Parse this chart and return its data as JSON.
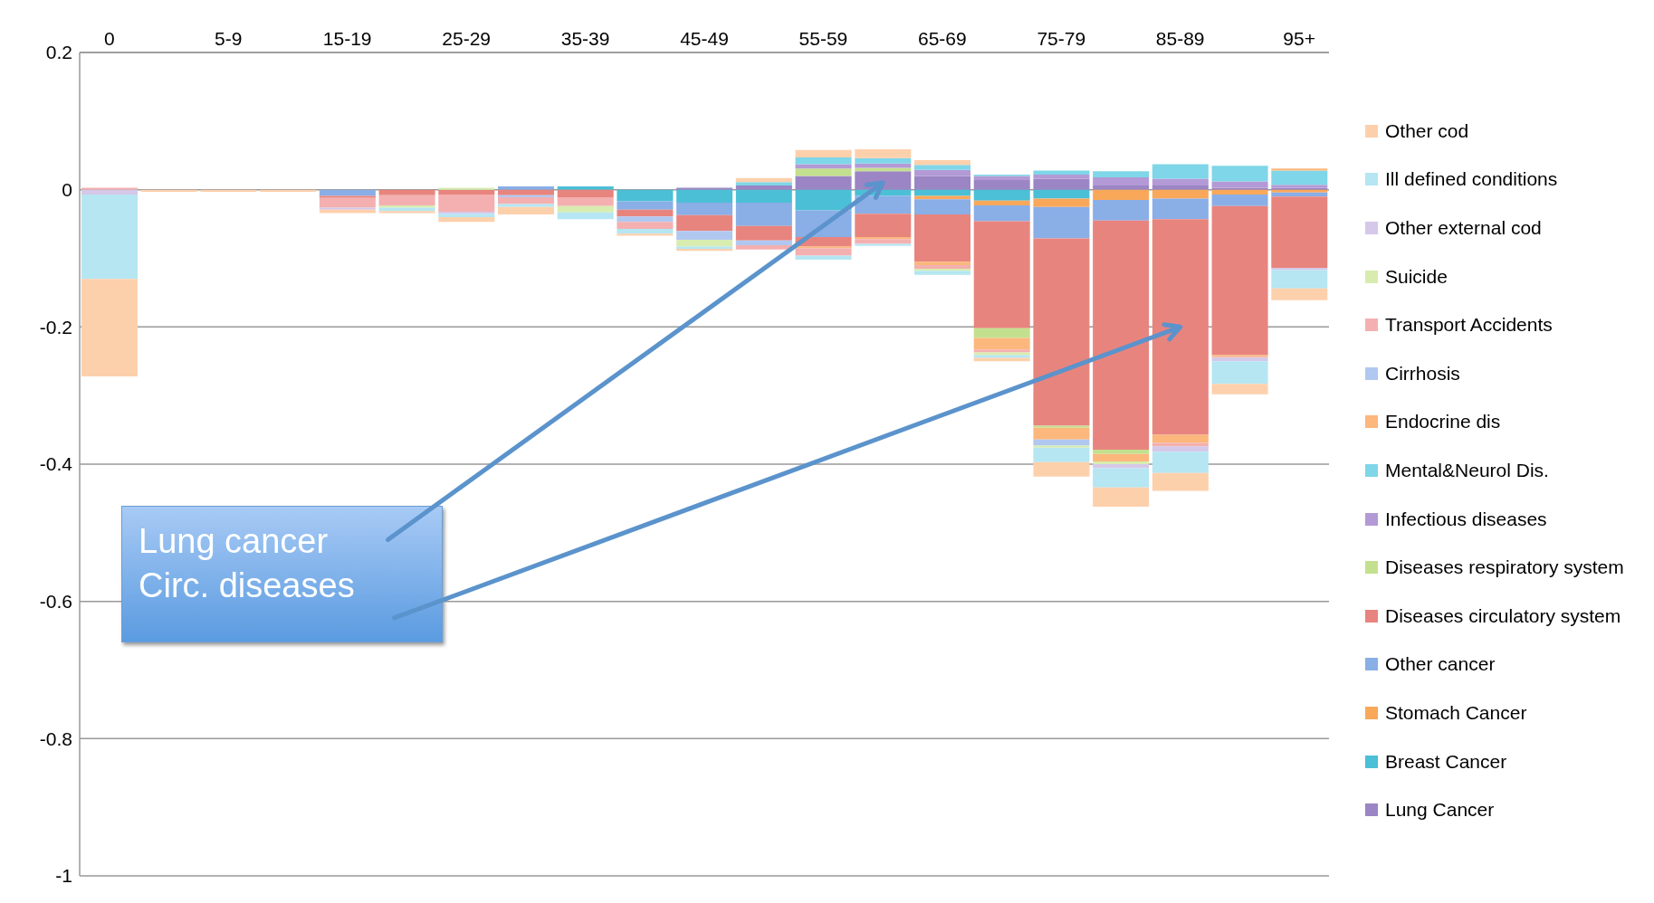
{
  "chart_data": {
    "type": "bar",
    "stacked": true,
    "grid": "y",
    "legend": "right",
    "categories": [
      "0",
      null,
      "5-9",
      null,
      "15-19",
      null,
      "25-29",
      null,
      "35-39",
      null,
      "45-49",
      null,
      "55-59",
      null,
      "65-69",
      null,
      "75-79",
      null,
      "85-89",
      null,
      "95+"
    ],
    "ylim": [
      -1,
      0.2
    ],
    "yticks": [
      -1,
      -0.8,
      -0.6,
      -0.4,
      -0.2,
      0,
      0.2
    ],
    "annotations": [
      "Lung cancer",
      "Circ. diseases"
    ],
    "series": [
      {
        "name": "Lung Cancer",
        "color": "#9b85c4",
        "values": [
          null,
          null,
          null,
          null,
          null,
          null,
          null,
          null,
          null,
          null,
          0.003,
          0.006,
          0.02,
          0.027,
          0.02,
          0.014,
          0.016,
          0.006,
          0.006,
          0.003,
          0.003
        ]
      },
      {
        "name": "Breast Cancer",
        "color": "#4bbfd6",
        "values": [
          null,
          null,
          null,
          null,
          null,
          null,
          null,
          null,
          0.005,
          -0.017,
          -0.019,
          -0.019,
          -0.03,
          -0.009,
          -0.009,
          -0.016,
          -0.013,
          null,
          null,
          null,
          null
        ]
      },
      {
        "name": "Stomach Cancer",
        "color": "#f9a85a",
        "values": [
          null,
          null,
          null,
          null,
          null,
          null,
          null,
          null,
          null,
          null,
          null,
          null,
          null,
          null,
          -0.005,
          -0.007,
          -0.012,
          -0.015,
          -0.013,
          -0.007,
          -0.004
        ]
      },
      {
        "name": "Other cancer",
        "color": "#8aaee6",
        "values": [
          null,
          null,
          null,
          null,
          -0.009,
          null,
          null,
          0.005,
          null,
          -0.012,
          -0.018,
          -0.034,
          -0.039,
          -0.026,
          -0.022,
          -0.023,
          -0.046,
          -0.03,
          -0.03,
          -0.017,
          -0.006
        ]
      },
      {
        "name": "Diseases circulatory system",
        "color": "#e8847e",
        "values": [
          null,
          null,
          null,
          null,
          -0.003,
          -0.008,
          -0.007,
          -0.008,
          -0.011,
          -0.01,
          -0.023,
          -0.021,
          -0.014,
          -0.034,
          -0.069,
          -0.156,
          -0.273,
          -0.334,
          -0.314,
          -0.217,
          -0.104
        ]
      },
      {
        "name": "Diseases respiratory system",
        "color": "#c3e08e",
        "values": [
          null,
          null,
          null,
          null,
          null,
          null,
          null,
          null,
          null,
          null,
          null,
          null,
          0.011,
          0.005,
          null,
          -0.014,
          -0.003,
          -0.006,
          null,
          null,
          null
        ]
      },
      {
        "name": "Infectious diseases",
        "color": "#b39ad6",
        "values": [
          null,
          null,
          null,
          null,
          null,
          null,
          null,
          null,
          null,
          null,
          null,
          null,
          0.006,
          0.006,
          0.009,
          0.006,
          0.006,
          0.012,
          0.01,
          0.009,
          0.004
        ]
      },
      {
        "name": "Mental&Neurol Dis.",
        "color": "#7fd6e8",
        "values": [
          null,
          null,
          null,
          null,
          null,
          null,
          null,
          null,
          null,
          null,
          null,
          0.005,
          0.01,
          0.008,
          0.007,
          0.002,
          0.006,
          0.009,
          0.021,
          0.023,
          0.021
        ]
      },
      {
        "name": "Endocrine dis",
        "color": "#fbb77c",
        "values": [
          null,
          null,
          null,
          null,
          null,
          null,
          null,
          null,
          null,
          null,
          null,
          null,
          -0.002,
          -0.003,
          -0.005,
          -0.017,
          -0.017,
          -0.011,
          -0.012,
          -0.003,
          0.003
        ]
      },
      {
        "name": "Cirrhosis",
        "color": "#b0c8f0",
        "values": [
          null,
          null,
          null,
          null,
          null,
          null,
          null,
          -0.003,
          null,
          -0.008,
          -0.013,
          -0.007,
          null,
          null,
          null,
          null,
          -0.009,
          null,
          null,
          null,
          null
        ]
      },
      {
        "name": "Transport Accidents",
        "color": "#f4b0b0",
        "values": [
          0.003,
          null,
          null,
          null,
          -0.014,
          -0.015,
          -0.025,
          -0.01,
          -0.013,
          -0.01,
          null,
          -0.006,
          -0.011,
          -0.007,
          -0.005,
          -0.004,
          null,
          null,
          -0.005,
          null,
          null
        ]
      },
      {
        "name": "Suicide",
        "color": "#d8ecb0",
        "values": [
          null,
          null,
          null,
          null,
          null,
          -0.003,
          0.003,
          null,
          -0.009,
          null,
          -0.01,
          null,
          null,
          null,
          -0.003,
          -0.004,
          -0.003,
          -0.004,
          null,
          null,
          null
        ]
      },
      {
        "name": "Other external cod",
        "color": "#d5c8e8",
        "values": [
          -0.007,
          null,
          null,
          null,
          -0.003,
          null,
          -0.003,
          null,
          null,
          null,
          null,
          null,
          null,
          null,
          null,
          null,
          null,
          -0.006,
          -0.008,
          -0.006,
          -0.003
        ]
      },
      {
        "name": "Ill defined conditions",
        "color": "#b5e6f2",
        "values": [
          -0.123,
          null,
          null,
          null,
          null,
          -0.005,
          -0.005,
          -0.004,
          -0.01,
          -0.007,
          -0.003,
          null,
          -0.006,
          -0.003,
          -0.006,
          -0.004,
          -0.021,
          -0.028,
          -0.031,
          -0.033,
          -0.027
        ]
      },
      {
        "name": "Other cod",
        "color": "#fdd0ac",
        "values": [
          -0.142,
          -0.003,
          -0.003,
          -0.003,
          -0.005,
          -0.003,
          -0.007,
          -0.011,
          null,
          -0.003,
          -0.003,
          0.006,
          0.011,
          0.013,
          0.007,
          -0.005,
          -0.021,
          -0.028,
          -0.026,
          -0.015,
          -0.017
        ]
      }
    ]
  }
}
